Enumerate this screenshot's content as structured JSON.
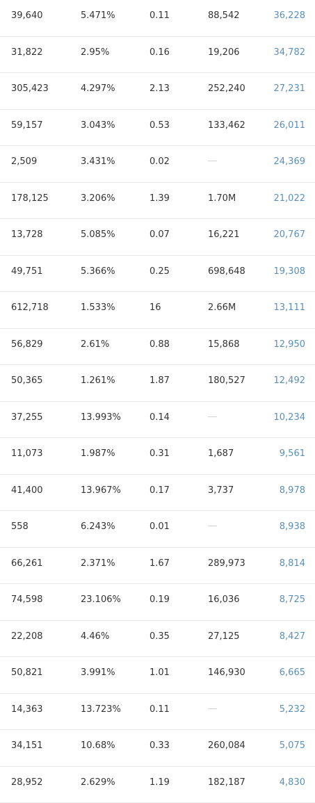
{
  "rows": [
    {
      "c1": "39,640",
      "c2": "5.471%",
      "c3": "0.11",
      "c4": "88,542",
      "c5": "36,228"
    },
    {
      "c1": "31,822",
      "c2": "2.95%",
      "c3": "0.16",
      "c4": "19,206",
      "c5": "34,782"
    },
    {
      "c1": "305,423",
      "c2": "4.297%",
      "c3": "2.13",
      "c4": "252,240",
      "c5": "27,231"
    },
    {
      "c1": "59,157",
      "c2": "3.043%",
      "c3": "0.53",
      "c4": "133,462",
      "c5": "26,011"
    },
    {
      "c1": "2,509",
      "c2": "3.431%",
      "c3": "0.02",
      "c4": null,
      "c5": "24,369"
    },
    {
      "c1": "178,125",
      "c2": "3.206%",
      "c3": "1.39",
      "c4": "1.70M",
      "c5": "21,022"
    },
    {
      "c1": "13,728",
      "c2": "5.085%",
      "c3": "0.07",
      "c4": "16,221",
      "c5": "20,767"
    },
    {
      "c1": "49,751",
      "c2": "5.366%",
      "c3": "0.25",
      "c4": "698,648",
      "c5": "19,308"
    },
    {
      "c1": "612,718",
      "c2": "1.533%",
      "c3": "16",
      "c4": "2.66M",
      "c5": "13,111"
    },
    {
      "c1": "56,829",
      "c2": "2.61%",
      "c3": "0.88",
      "c4": "15,868",
      "c5": "12,950"
    },
    {
      "c1": "50,365",
      "c2": "1.261%",
      "c3": "1.87",
      "c4": "180,527",
      "c5": "12,492"
    },
    {
      "c1": "37,255",
      "c2": "13.993%",
      "c3": "0.14",
      "c4": null,
      "c5": "10,234"
    },
    {
      "c1": "11,073",
      "c2": "1.987%",
      "c3": "0.31",
      "c4": "1,687",
      "c5": "9,561"
    },
    {
      "c1": "41,400",
      "c2": "13.967%",
      "c3": "0.17",
      "c4": "3,737",
      "c5": "8,978"
    },
    {
      "c1": "558",
      "c2": "6.243%",
      "c3": "0.01",
      "c4": null,
      "c5": "8,938"
    },
    {
      "c1": "66,261",
      "c2": "2.371%",
      "c3": "1.67",
      "c4": "289,973",
      "c5": "8,814"
    },
    {
      "c1": "74,598",
      "c2": "23.106%",
      "c3": "0.19",
      "c4": "16,036",
      "c5": "8,725"
    },
    {
      "c1": "22,208",
      "c2": "4.46%",
      "c3": "0.35",
      "c4": "27,125",
      "c5": "8,427"
    },
    {
      "c1": "50,821",
      "c2": "3.991%",
      "c3": "1.01",
      "c4": "146,930",
      "c5": "6,665"
    },
    {
      "c1": "14,363",
      "c2": "13.723%",
      "c3": "0.11",
      "c4": null,
      "c5": "5,232"
    },
    {
      "c1": "34,151",
      "c2": "10.68%",
      "c3": "0.33",
      "c4": "260,084",
      "c5": "5,075"
    },
    {
      "c1": "28,952",
      "c2": "2.629%",
      "c3": "1.19",
      "c4": "182,187",
      "c5": "4,830"
    }
  ]
}
